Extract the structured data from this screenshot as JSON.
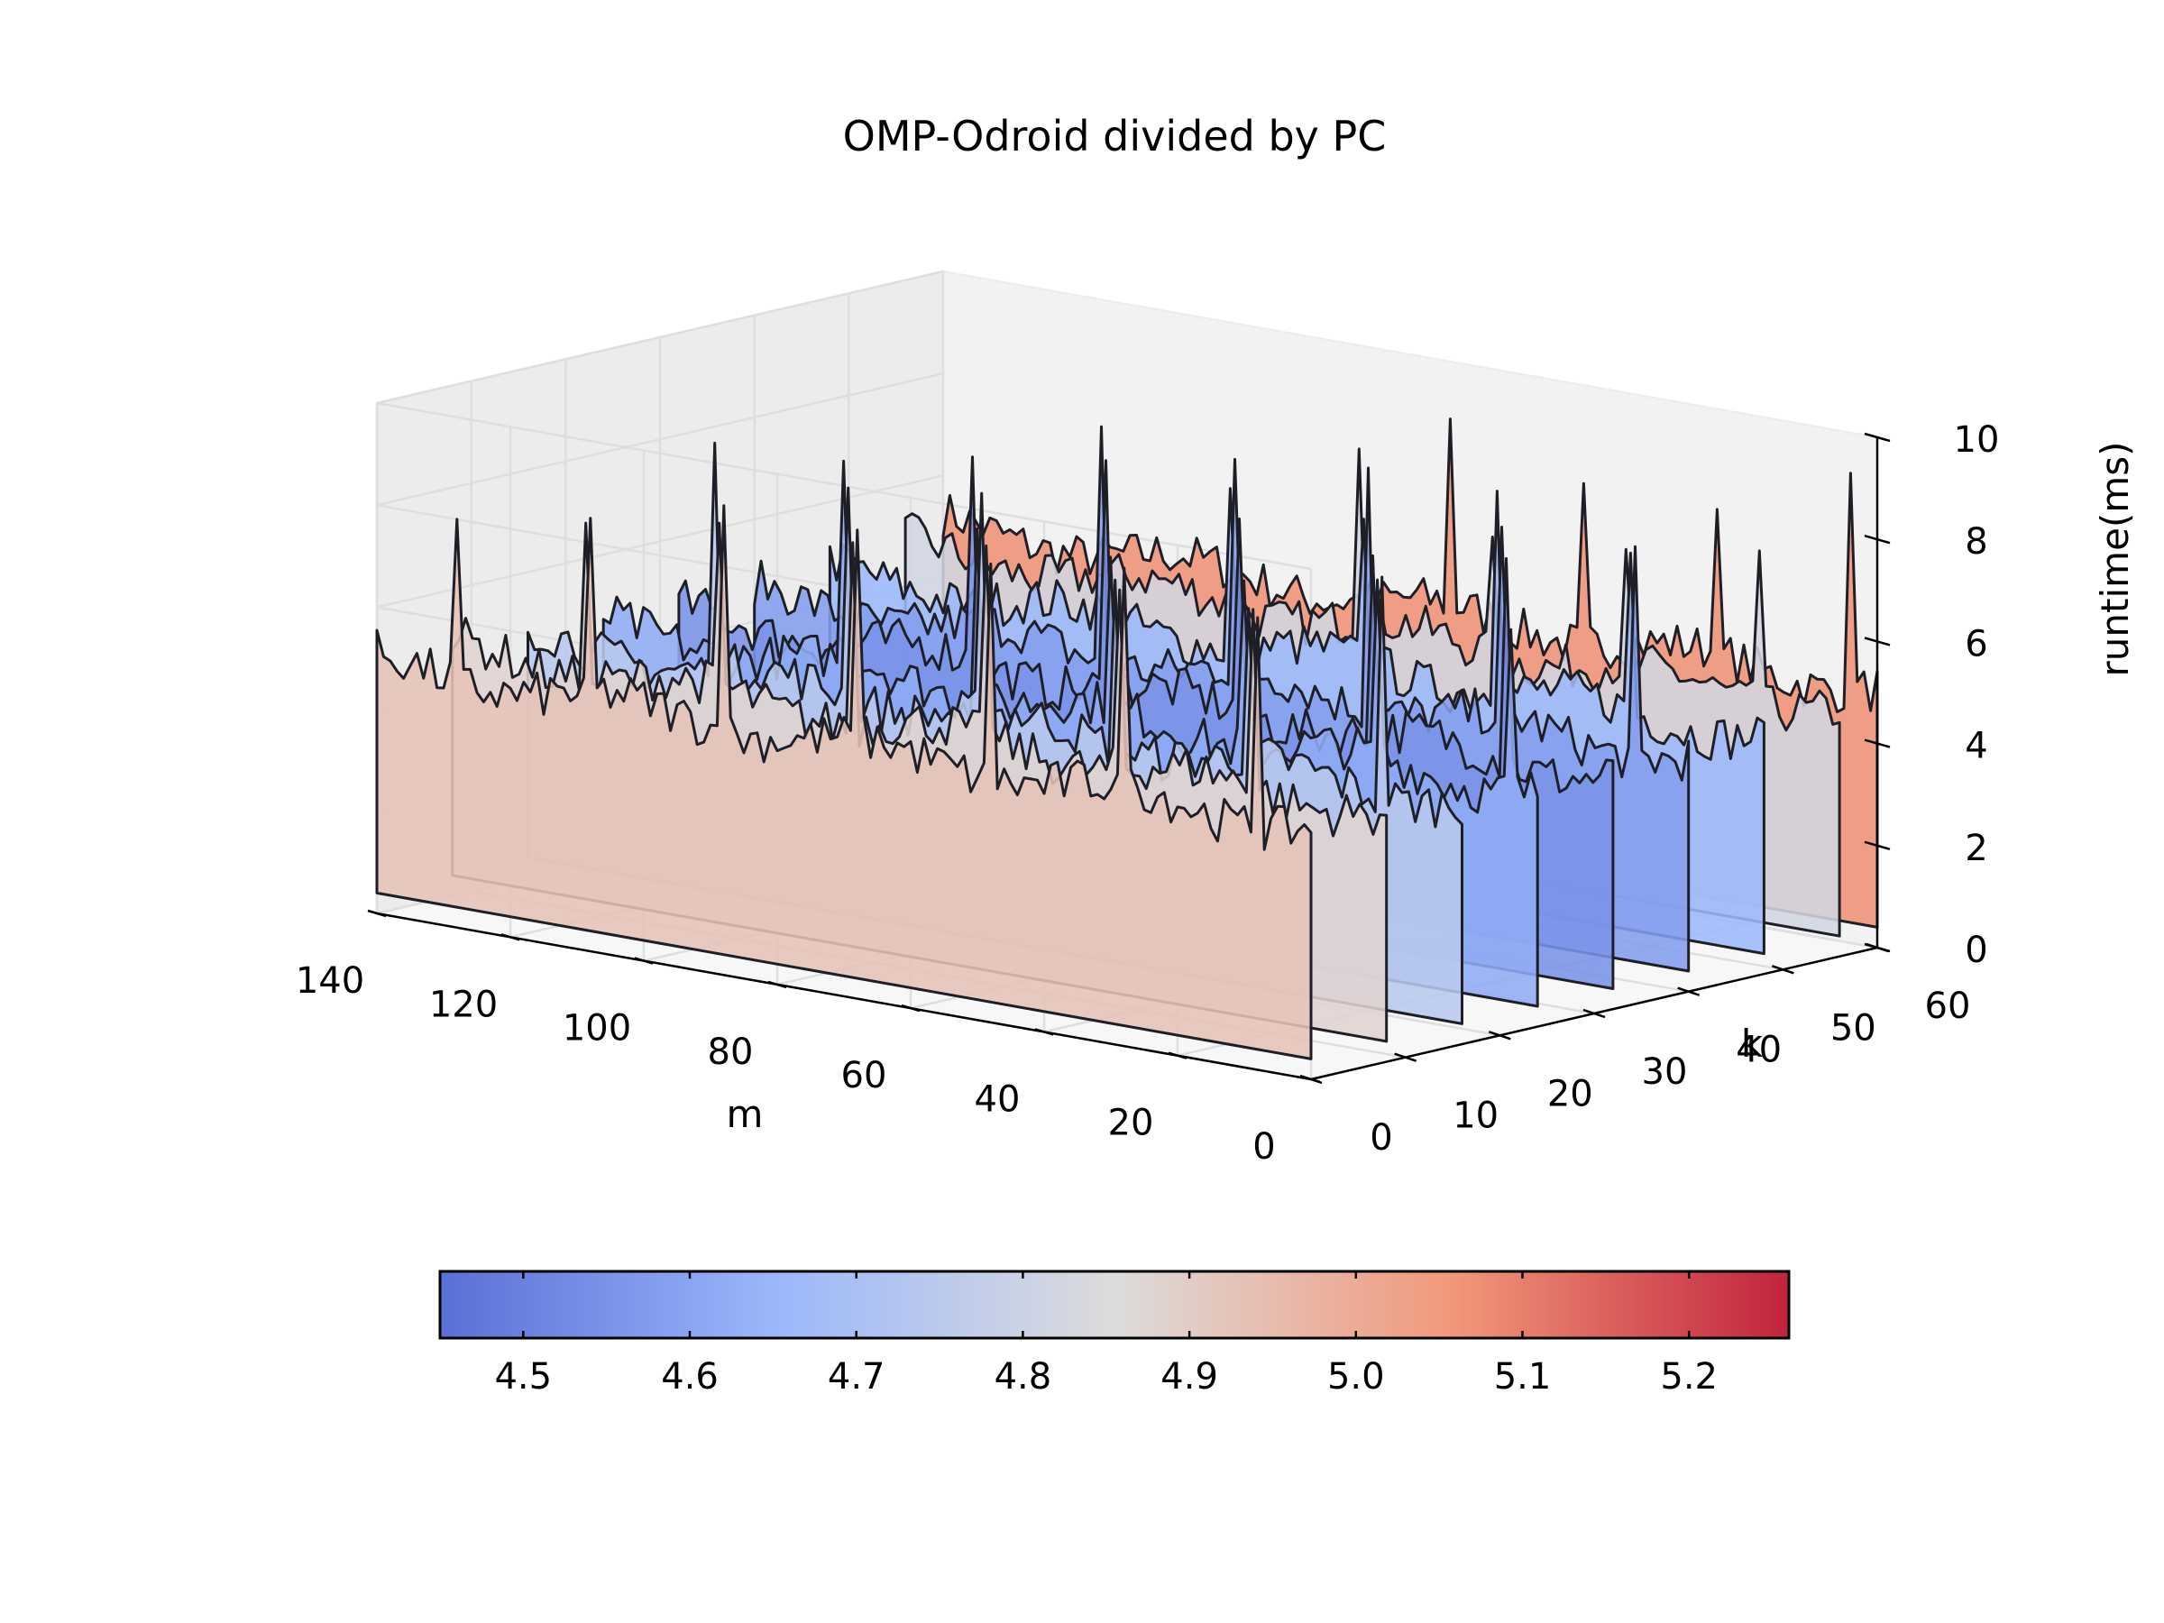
{
  "chart_data": {
    "type": "surface",
    "title": "OMP-Odroid divided by PC",
    "xlabel": "m",
    "ylabel": "k",
    "zlabel": "runtime(ms)",
    "xlim": [
      0,
      140
    ],
    "ylim": [
      0,
      60
    ],
    "zlim": [
      0,
      10
    ],
    "x_ticks": [
      "0",
      "20",
      "40",
      "60",
      "80",
      "100",
      "120",
      "140"
    ],
    "y_ticks": [
      "0",
      "10",
      "20",
      "30",
      "40",
      "50",
      "60"
    ],
    "z_ticks": [
      "0",
      "2",
      "4",
      "6",
      "8",
      "10"
    ],
    "grid": true,
    "colormap": "coolwarm",
    "colorbar": {
      "orientation": "horizontal",
      "location": "bottom",
      "range": [
        4.45,
        5.26
      ],
      "ticks": [
        "4.5",
        "4.6",
        "4.7",
        "4.8",
        "4.9",
        "5.0",
        "5.1",
        "5.2"
      ]
    },
    "series": [
      {
        "k": 0,
        "mean_runtime": 4.93,
        "spike_at_m": [
          128,
          108,
          88,
          68,
          48,
          28,
          8
        ],
        "spike_max": 9.4
      },
      {
        "k": 8,
        "mean_runtime": 4.88,
        "spike_at_m": [
          120,
          100,
          80,
          60,
          40,
          20
        ],
        "spike_max": 9.0
      },
      {
        "k": 16,
        "mean_runtime": 4.74,
        "spike_at_m": [
          112,
          92,
          72,
          52,
          32,
          12
        ],
        "spike_max": 9.2
      },
      {
        "k": 24,
        "mean_runtime": 4.62,
        "spike_at_m": [
          104,
          84,
          64,
          44,
          24,
          4
        ],
        "spike_max": 8.8
      },
      {
        "k": 32,
        "mean_runtime": 4.55,
        "spike_at_m": [
          96,
          76,
          56,
          36,
          16
        ],
        "spike_max": 9.0
      },
      {
        "k": 40,
        "mean_runtime": 4.58,
        "spike_at_m": [
          88,
          68,
          48,
          28,
          8
        ],
        "spike_max": 9.8
      },
      {
        "k": 48,
        "mean_runtime": 4.66,
        "spike_at_m": [
          80,
          60,
          40,
          20
        ],
        "spike_max": 8.6
      },
      {
        "k": 56,
        "mean_runtime": 4.82,
        "spike_at_m": [
          72,
          52,
          32,
          12
        ],
        "spike_max": 8.4
      },
      {
        "k": 64,
        "mean_runtime": 5.07,
        "spike_at_m": [
          64,
          44,
          24,
          4
        ],
        "spike_max": 9.4
      }
    ]
  }
}
